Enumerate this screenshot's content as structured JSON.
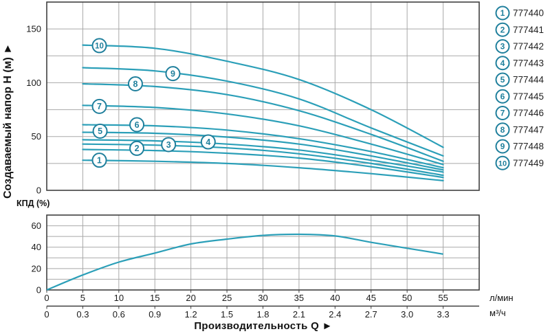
{
  "colors": {
    "curve": "#2b9fb8",
    "badge": "#1f7f9c",
    "grid": "#a8a8a8",
    "frame": "#3f3f3f",
    "text": "#1a1a1a",
    "legend_text": "#1f1f1f"
  },
  "axis": {
    "y_title": "Создаваемый напор Н (м)  ►",
    "x_title": "Производительность Q  ►",
    "eff_title": "КПД (%)",
    "unit_lmin": "л/мин",
    "unit_m3h": "м³/ч"
  },
  "legend": {
    "items": [
      {
        "num": "1",
        "model": "777440"
      },
      {
        "num": "2",
        "model": "777441"
      },
      {
        "num": "3",
        "model": "777442"
      },
      {
        "num": "4",
        "model": "777443"
      },
      {
        "num": "5",
        "model": "777444"
      },
      {
        "num": "6",
        "model": "777445"
      },
      {
        "num": "7",
        "model": "777446"
      },
      {
        "num": "8",
        "model": "777447"
      },
      {
        "num": "9",
        "model": "777448"
      },
      {
        "num": "10",
        "model": "777449"
      }
    ]
  },
  "chart_data": [
    {
      "type": "line",
      "title": "",
      "xlabel": "Производительность Q",
      "ylabel": "Создаваемый напор Н (м)",
      "x_unit_primary": "л/мин",
      "x_unit_secondary": "м³/ч",
      "xlim_lmin": [
        0,
        60
      ],
      "ylim": [
        0,
        175
      ],
      "grid": "on",
      "legend_position": "right",
      "y_ticks": [
        0,
        50,
        100,
        150
      ],
      "x_lmin_ticks": [
        "0",
        "5",
        "10",
        "15",
        "20",
        "25",
        "30",
        "35",
        "40",
        "45",
        "50",
        "55"
      ],
      "x_m3h_ticks": [
        "0",
        "0.3",
        "0.6",
        "0.9",
        "1.2",
        "1.5",
        "1.8",
        "2.1",
        "2.4",
        "2.7",
        "3.0",
        "3.3"
      ],
      "x_sample_lmin": [
        5,
        15,
        25,
        35,
        45,
        55
      ],
      "series": [
        {
          "name": "1",
          "model": "777440",
          "values": [
            28,
            27,
            25,
            21,
            15.5,
            9
          ]
        },
        {
          "name": "2",
          "model": "777441",
          "values": [
            38,
            37,
            34.5,
            30,
            22,
            12
          ]
        },
        {
          "name": "3",
          "model": "777442",
          "values": [
            43,
            42,
            39.5,
            34,
            25,
            14
          ]
        },
        {
          "name": "4",
          "model": "777443",
          "values": [
            47,
            46,
            43,
            37.5,
            28,
            17
          ]
        },
        {
          "name": "5",
          "model": "777444",
          "values": [
            54,
            53,
            49.5,
            43,
            32,
            19
          ]
        },
        {
          "name": "6",
          "model": "777445",
          "values": [
            61,
            60,
            56,
            48,
            36,
            21
          ]
        },
        {
          "name": "7",
          "model": "777446",
          "values": [
            79,
            77,
            71,
            60,
            43,
            24
          ]
        },
        {
          "name": "8",
          "model": "777447",
          "values": [
            99,
            96.5,
            89,
            74,
            52,
            27
          ]
        },
        {
          "name": "9",
          "model": "777448",
          "values": [
            114,
            111,
            101.5,
            85,
            58,
            32
          ]
        },
        {
          "name": "10",
          "model": "777449",
          "values": [
            135,
            132,
            120,
            103,
            75,
            40
          ]
        }
      ],
      "labels": [
        {
          "num": "1",
          "q": 7.3,
          "h": 28
        },
        {
          "num": "2",
          "q": 12.5,
          "h": 39
        },
        {
          "num": "3",
          "q": 16.9,
          "h": 42.5
        },
        {
          "num": "4",
          "q": 22.4,
          "h": 45
        },
        {
          "num": "5",
          "q": 7.4,
          "h": 55
        },
        {
          "num": "6",
          "q": 12.5,
          "h": 61
        },
        {
          "num": "7",
          "q": 7.3,
          "h": 78
        },
        {
          "num": "8",
          "q": 12.3,
          "h": 99
        },
        {
          "num": "9",
          "q": 17.5,
          "h": 108.5
        },
        {
          "num": "10",
          "q": 7.3,
          "h": 134.5
        }
      ]
    },
    {
      "type": "line",
      "title": "КПД (%)",
      "ylabel": "КПД (%)",
      "ylim": [
        0,
        70
      ],
      "grid": "on",
      "y_ticks": [
        0,
        20,
        40,
        60
      ],
      "x_lmin": [
        0,
        5,
        10,
        15,
        20,
        25,
        30,
        35,
        40,
        45,
        50,
        55
      ],
      "values": [
        0,
        14,
        26,
        34.5,
        43,
        47.5,
        51,
        52,
        50.5,
        44.5,
        39,
        33.5
      ]
    }
  ]
}
